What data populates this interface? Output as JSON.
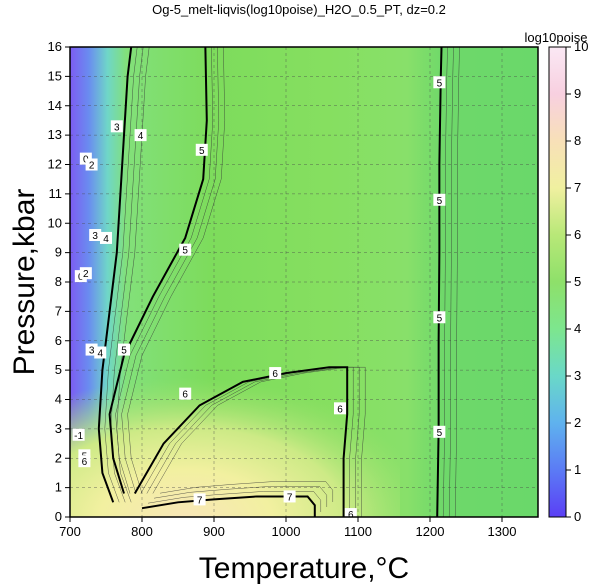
{
  "chart_data": {
    "type": "contour",
    "title": "Og-5_melt-liqvis(log10poise)_H2O_0.5_PT, dz=0.2",
    "xlabel": "Temperature,°C",
    "ylabel": "Pressure,kbar",
    "xlim": [
      700,
      1350
    ],
    "ylim": [
      0,
      16
    ],
    "x_ticks": [
      700,
      800,
      900,
      1000,
      1100,
      1200,
      1300
    ],
    "y_ticks": [
      0,
      1,
      2,
      3,
      4,
      5,
      6,
      7,
      8,
      9,
      10,
      11,
      12,
      13,
      14,
      15,
      16
    ],
    "grid": true,
    "colorbar": {
      "label": "log10poise",
      "range": [
        0,
        10
      ],
      "ticks": [
        0,
        1,
        2,
        3,
        4,
        5,
        6,
        7,
        8,
        9,
        10
      ],
      "colors": [
        "#5b3ff5",
        "#5b7bf5",
        "#5fb2ee",
        "#6ad8c8",
        "#7de68e",
        "#8ee06a",
        "#b8e878",
        "#f0f0a0",
        "#f8e0b8",
        "#f8d0e0",
        "#fae8f4"
      ]
    },
    "contour_lines": [
      {
        "level": 4,
        "label": "4",
        "points": [
          [
            760,
            0.5
          ],
          [
            745,
            1.5
          ],
          [
            740,
            3
          ],
          [
            745,
            5
          ],
          [
            755,
            7
          ],
          [
            765,
            9
          ],
          [
            770,
            11
          ],
          [
            775,
            13
          ],
          [
            780,
            15
          ],
          [
            785,
            16
          ]
        ]
      },
      {
        "level": 5,
        "label": "5",
        "points": [
          [
            775,
            0.8
          ],
          [
            760,
            2
          ],
          [
            755,
            3.5
          ],
          [
            775,
            5.5
          ],
          [
            815,
            7.5
          ],
          [
            860,
            9.5
          ],
          [
            885,
            11.5
          ],
          [
            890,
            13.5
          ],
          [
            888,
            16
          ]
        ]
      },
      {
        "level": 5,
        "label": "5",
        "points": [
          [
            1210,
            0
          ],
          [
            1212,
            3
          ],
          [
            1212,
            6
          ],
          [
            1213,
            9
          ],
          [
            1213,
            12
          ],
          [
            1215,
            15
          ],
          [
            1216,
            16
          ]
        ]
      },
      {
        "level": 6,
        "label": "6",
        "points": [
          [
            790,
            0.8
          ],
          [
            830,
            2.5
          ],
          [
            880,
            3.8
          ],
          [
            940,
            4.6
          ],
          [
            1000,
            4.9
          ],
          [
            1060,
            5.1
          ],
          [
            1085,
            5.1
          ],
          [
            1085,
            3.5
          ],
          [
            1080,
            2
          ],
          [
            1080,
            0
          ]
        ]
      },
      {
        "level": 7,
        "label": "7",
        "points": [
          [
            800,
            0.3
          ],
          [
            850,
            0.5
          ],
          [
            900,
            0.6
          ],
          [
            960,
            0.7
          ],
          [
            1030,
            0.7
          ],
          [
            1040,
            0.4
          ],
          [
            1040,
            0
          ]
        ]
      }
    ],
    "contour_labels": [
      {
        "text": "0",
        "x": 715,
        "y": 8.2
      },
      {
        "text": "2",
        "x": 722,
        "y": 8.3
      },
      {
        "text": "3",
        "x": 735,
        "y": 9.6
      },
      {
        "text": "4",
        "x": 750,
        "y": 9.5
      },
      {
        "text": "3",
        "x": 765,
        "y": 13.3
      },
      {
        "text": "4",
        "x": 798,
        "y": 13.0
      },
      {
        "text": "0",
        "x": 722,
        "y": 12.2
      },
      {
        "text": "2",
        "x": 730,
        "y": 12.0
      },
      {
        "text": "5",
        "x": 883,
        "y": 12.5
      },
      {
        "text": "5",
        "x": 860,
        "y": 9.1
      },
      {
        "text": "3",
        "x": 730,
        "y": 5.7
      },
      {
        "text": "4",
        "x": 742,
        "y": 5.6
      },
      {
        "text": "5",
        "x": 775,
        "y": 5.7
      },
      {
        "text": "6",
        "x": 860,
        "y": 4.2
      },
      {
        "text": "6",
        "x": 985,
        "y": 4.9
      },
      {
        "text": "6",
        "x": 1075,
        "y": 3.7
      },
      {
        "text": "7",
        "x": 880,
        "y": 0.6
      },
      {
        "text": "7",
        "x": 1005,
        "y": 0.7
      },
      {
        "text": "6",
        "x": 1090,
        "y": 0.1
      },
      {
        "text": "5",
        "x": 1213,
        "y": 14.8
      },
      {
        "text": "5",
        "x": 1213,
        "y": 10.8
      },
      {
        "text": "5",
        "x": 1213,
        "y": 6.8
      },
      {
        "text": "5",
        "x": 1213,
        "y": 2.9
      },
      {
        "text": "-1",
        "x": 712,
        "y": 2.8
      },
      {
        "text": "5",
        "x": 720,
        "y": 2.1
      },
      {
        "text": "6",
        "x": 720,
        "y": 1.9
      }
    ]
  }
}
